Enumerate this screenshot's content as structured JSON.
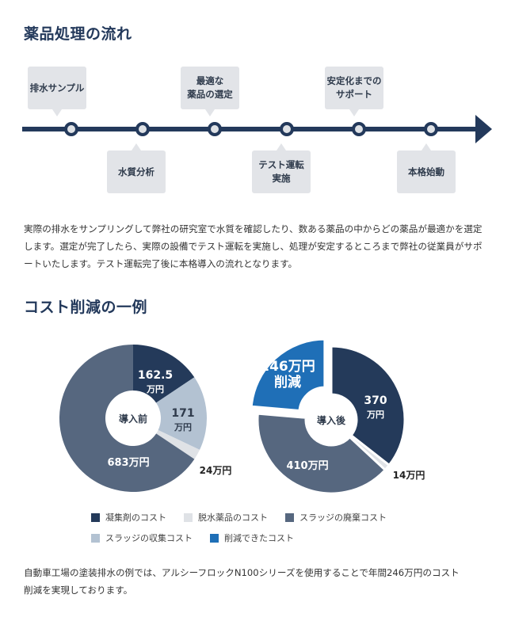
{
  "section1": {
    "title": "薬品処理の流れ",
    "steps": [
      {
        "label": "排水サンプル",
        "position": "above"
      },
      {
        "label": "水質分析",
        "position": "below"
      },
      {
        "label": "最適な\n薬品の選定",
        "position": "above"
      },
      {
        "label": "テスト運転\n実施",
        "position": "below"
      },
      {
        "label": "安定化までの\nサポート",
        "position": "above"
      },
      {
        "label": "本格始動",
        "position": "below"
      }
    ],
    "description": "実際の排水をサンプリングして弊社の研究室で水質を確認したり、数ある薬品の中からどの薬品が最適かを選定します。選定が完了したら、実際の設備でテスト運転を実施し、処理が安定するところまで弊社の従業員がサポートいたします。テスト運転完了後に本格導入の流れとなります。"
  },
  "section2": {
    "title": "コスト削減の一例",
    "description": "自動車工場の塗装排水の例では、アルシーフロックN100シリーズを使用することで年間246万円のコスト削減を実現しております。"
  },
  "colors": {
    "navy": "#243a5a",
    "light_gray": "#dfe2e6",
    "slate": "#56677f",
    "light_blue_gray": "#b3c2d2",
    "blue": "#1f6fb7",
    "timeline": "#23395b"
  },
  "legend": [
    {
      "label": "凝集剤のコスト",
      "color": "#243a5a"
    },
    {
      "label": "脱水薬品のコスト",
      "color": "#dfe2e6"
    },
    {
      "label": "スラッジの廃棄コスト",
      "color": "#56677f"
    },
    {
      "label": "スラッジの収集コスト",
      "color": "#b3c2d2"
    },
    {
      "label": "削減できたコスト",
      "color": "#1f6fb7"
    }
  ],
  "chart_data": [
    {
      "type": "pie",
      "title": "導入前",
      "unit": "万円",
      "categories": [
        "凝集剤のコスト",
        "スラッジの収集コスト",
        "脱水薬品のコスト",
        "スラッジの廃棄コスト"
      ],
      "values": [
        162.5,
        171,
        24,
        683
      ],
      "labels": [
        "162.5\n万円",
        "171\n万円",
        "24万円",
        "683万円"
      ],
      "colors": [
        "#243a5a",
        "#b3c2d2",
        "#dfe2e6",
        "#56677f"
      ],
      "donut": true
    },
    {
      "type": "pie",
      "title": "導入後",
      "unit": "万円",
      "categories": [
        "凝集剤のコスト",
        "脱水薬品のコスト",
        "スラッジの廃棄コスト",
        "削減できたコスト"
      ],
      "values": [
        370,
        14,
        410,
        246
      ],
      "labels": [
        "370\n万円",
        "14万円",
        "410万円",
        "246万円\n削減"
      ],
      "colors": [
        "#243a5a",
        "#dfe2e6",
        "#56677f",
        "#1f6fb7"
      ],
      "exploded": [
        "削減できたコスト"
      ],
      "donut": true
    }
  ]
}
